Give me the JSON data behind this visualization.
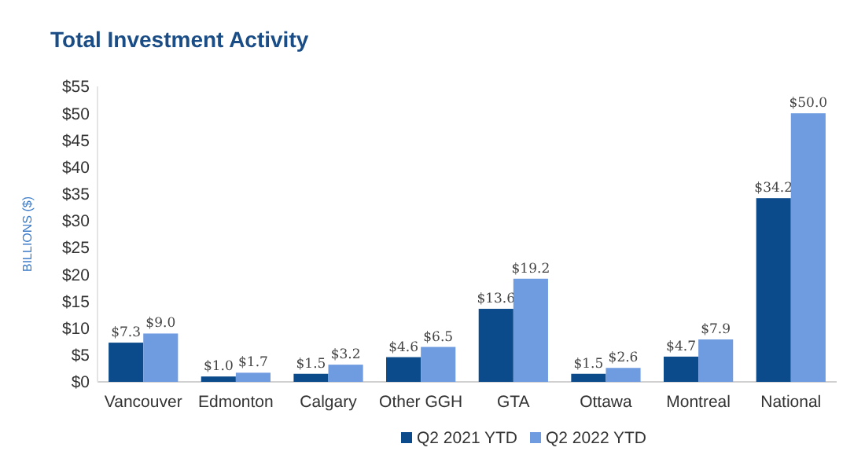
{
  "chart_data": {
    "type": "bar",
    "title": "Total Investment Activity",
    "ylabel": "BILLIONS ($)",
    "categories": [
      "Vancouver",
      "Edmonton",
      "Calgary",
      "Other GGH",
      "GTA",
      "Ottawa",
      "Montreal",
      "National"
    ],
    "series": [
      {
        "name": "Q2 2021 YTD",
        "color": "#0b4a8b",
        "values": [
          7.3,
          1.0,
          1.5,
          4.6,
          13.6,
          1.5,
          4.7,
          34.2
        ],
        "value_labels": [
          "$7.3",
          "$1.0",
          "$1.5",
          "$4.6",
          "$13.6",
          "$1.5",
          "$4.7",
          "$34.2"
        ]
      },
      {
        "name": "Q2 2022 YTD",
        "color": "#6f9be0",
        "values": [
          9.0,
          1.7,
          3.2,
          6.5,
          19.2,
          2.6,
          7.9,
          50.0
        ],
        "value_labels": [
          "$9.0",
          "$1.7",
          "$3.2",
          "$6.5",
          "$19.2",
          "$2.6",
          "$7.9",
          "$50.0"
        ]
      }
    ],
    "ylim": [
      0,
      55
    ],
    "yticks": [
      {
        "value": 0,
        "label": "$0"
      },
      {
        "value": 5,
        "label": "$5"
      },
      {
        "value": 10,
        "label": "$10"
      },
      {
        "value": 15,
        "label": "$15"
      },
      {
        "value": 20,
        "label": "$20"
      },
      {
        "value": 25,
        "label": "$25"
      },
      {
        "value": 30,
        "label": "$30"
      },
      {
        "value": 35,
        "label": "$35"
      },
      {
        "value": 40,
        "label": "$40"
      },
      {
        "value": 45,
        "label": "$45"
      },
      {
        "value": 50,
        "label": "$50"
      },
      {
        "value": 55,
        "label": "$55"
      }
    ],
    "legend": "bottom",
    "grid": false
  }
}
